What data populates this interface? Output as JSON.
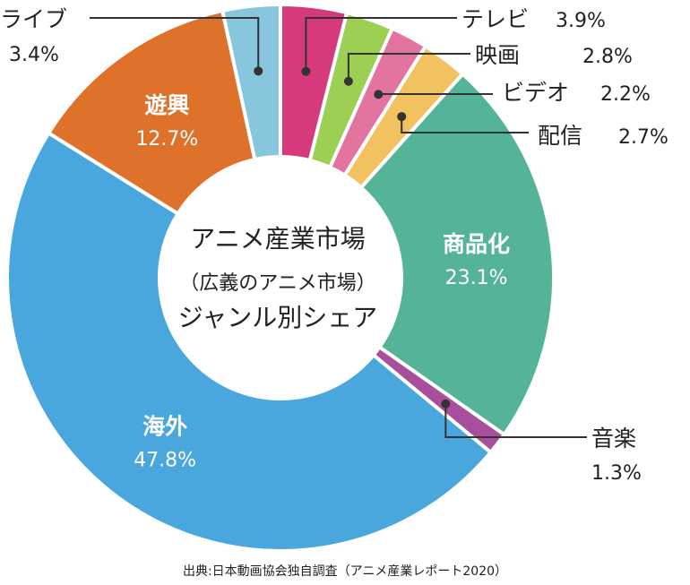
{
  "chart_data": {
    "type": "pie",
    "donut": true,
    "center_lines": [
      "アニメ産業市場",
      "（広義のアニメ市場）",
      "ジャンル別シェア"
    ],
    "slices": [
      {
        "label": "テレビ",
        "pct": "3.9%",
        "value": 3.9,
        "color": "#d63a7c",
        "placement": "outside"
      },
      {
        "label": "映画",
        "pct": "2.8%",
        "value": 2.8,
        "color": "#9ccf52",
        "placement": "outside"
      },
      {
        "label": "ビデオ",
        "pct": "2.2%",
        "value": 2.2,
        "color": "#e3739f",
        "placement": "outside"
      },
      {
        "label": "配信",
        "pct": "2.7%",
        "value": 2.7,
        "color": "#f2c160",
        "placement": "outside"
      },
      {
        "label": "商品化",
        "pct": "23.1%",
        "value": 23.1,
        "color": "#55b398",
        "placement": "inside"
      },
      {
        "label": "音楽",
        "pct": "1.3%",
        "value": 1.3,
        "color": "#a84f9c",
        "placement": "outside"
      },
      {
        "label": "海外",
        "pct": "47.8%",
        "value": 47.8,
        "color": "#4aa7de",
        "placement": "inside"
      },
      {
        "label": "遊興",
        "pct": "12.7%",
        "value": 12.7,
        "color": "#de722b",
        "placement": "inside"
      },
      {
        "label": "ライブ",
        "pct": "3.4%",
        "value": 3.4,
        "color": "#87c6dc",
        "placement": "outside"
      }
    ],
    "source": "出典:日本動画協会独自調査（アニメ産業レポート2020）"
  }
}
